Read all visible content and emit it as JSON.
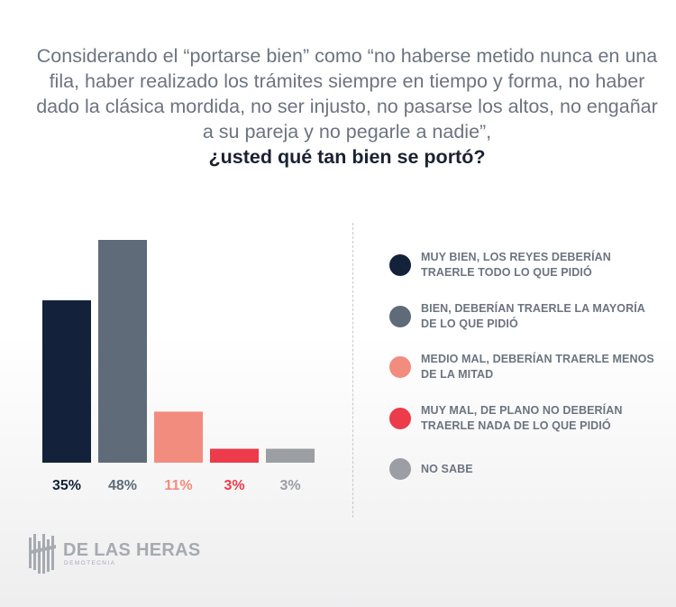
{
  "question": {
    "intro": "Considerando el “portarse bien” como “no haberse metido nunca en una fila, haber realizado los trámites siempre en tiempo y forma, no haber dado la clásica mordida, no ser injusto, no pasarse los altos, no engañar a su pareja y no pegarle a nadie”,",
    "emphasis": "¿usted qué tan bien se portó?"
  },
  "chart_data": {
    "type": "bar",
    "title": "¿usted qué tan bien se portó?",
    "xlabel": "",
    "ylabel": "",
    "ylim": [
      0,
      48
    ],
    "grid": false,
    "legend_position": "right",
    "categories": [
      "MUY BIEN, LOS REYES DEBERÍAN TRAERLE TODO LO QUE PIDIÓ",
      "BIEN, DEBERÍAN TRAERLE LA MAYORÍA DE LO QUE PIDIÓ",
      "MEDIO MAL, DEBERÍAN TRAERLE MENOS DE LA MITAD",
      "MUY MAL, DE PLANO NO DEBERÍAN TRAERLE NADA DE LO QUE PIDIÓ",
      "NO SABE"
    ],
    "values": [
      35,
      48,
      11,
      3,
      3
    ],
    "value_labels": [
      "35%",
      "48%",
      "11%",
      "3%",
      "3%"
    ],
    "colors": [
      "#13223a",
      "#5f6b79",
      "#f28c7e",
      "#ec3b4b",
      "#9b9ea3"
    ]
  },
  "legend": {
    "items": [
      {
        "label": "MUY BIEN, LOS REYES DEBERÍAN TRAERLE TODO LO QUE PIDIÓ",
        "color": "#13223a"
      },
      {
        "label": "BIEN, DEBERÍAN TRAERLE LA MAYORÍA DE LO QUE PIDIÓ",
        "color": "#5f6b79"
      },
      {
        "label": "MEDIO MAL, DEBERÍAN TRAERLE MENOS DE LA MITAD",
        "color": "#f28c7e"
      },
      {
        "label": "MUY MAL, DE PLANO NO DEBERÍAN TRAERLE NADA DE LO QUE PIDIÓ",
        "color": "#ec3b4b"
      },
      {
        "label": "NO SABE",
        "color": "#9b9ea3"
      }
    ]
  },
  "brand": {
    "name": "DE LAS HERAS",
    "subtitle": "DEMOTECNIA",
    "color": "#a6aab1"
  }
}
